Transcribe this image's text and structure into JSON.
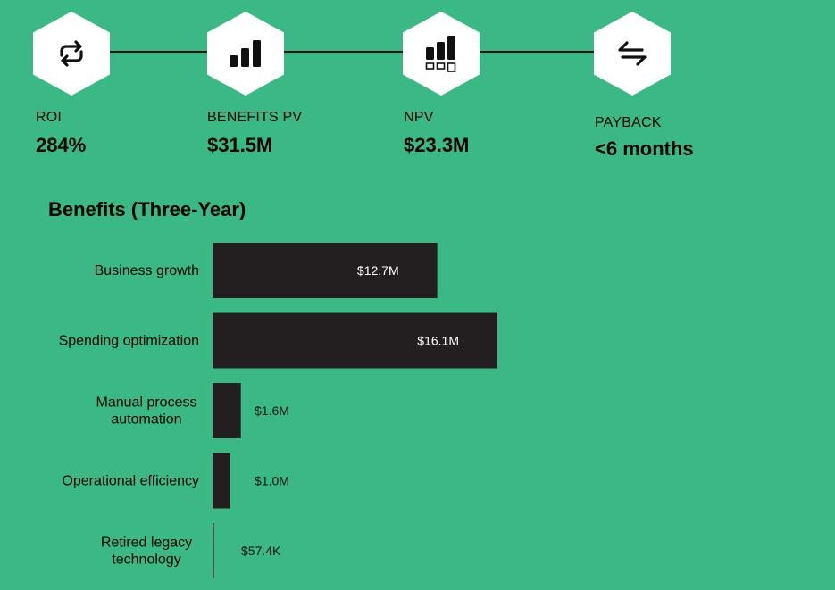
{
  "metrics": [
    {
      "label": "ROI",
      "value": "284%",
      "icon": "refresh-icon"
    },
    {
      "label": "BENEFITS PV",
      "value": "$31.5M",
      "icon": "bar-chart-icon"
    },
    {
      "label": "NPV",
      "value": "$23.3M",
      "icon": "bar-chart-squares-icon"
    },
    {
      "label": "PAYBACK",
      "value": "<6 months",
      "icon": "exchange-arrows-icon"
    }
  ],
  "colors": {
    "background": "#3BB984",
    "bar": "#231F20",
    "hex": "#FFFFFF"
  },
  "chart_data": {
    "type": "bar",
    "orientation": "horizontal",
    "title": "Benefits (Three-Year)",
    "categories": [
      "Business growth",
      "Spending optimization",
      "Manual process automation",
      "Operational efficiency",
      "Retired legacy technology"
    ],
    "category_lines": [
      [
        "Business growth"
      ],
      [
        "Spending optimization"
      ],
      [
        "Manual process",
        "automation"
      ],
      [
        "Operational efficiency"
      ],
      [
        "Retired legacy",
        "technology"
      ]
    ],
    "values": [
      12.7,
      16.1,
      1.6,
      1.0,
      0.0574
    ],
    "value_labels": [
      "$12.7M",
      "$16.1M",
      "$1.6M",
      "$1.0M",
      "$57.4K"
    ],
    "unit": "$M",
    "xlim": [
      0,
      16.1
    ],
    "grid": false,
    "legend": "none"
  }
}
